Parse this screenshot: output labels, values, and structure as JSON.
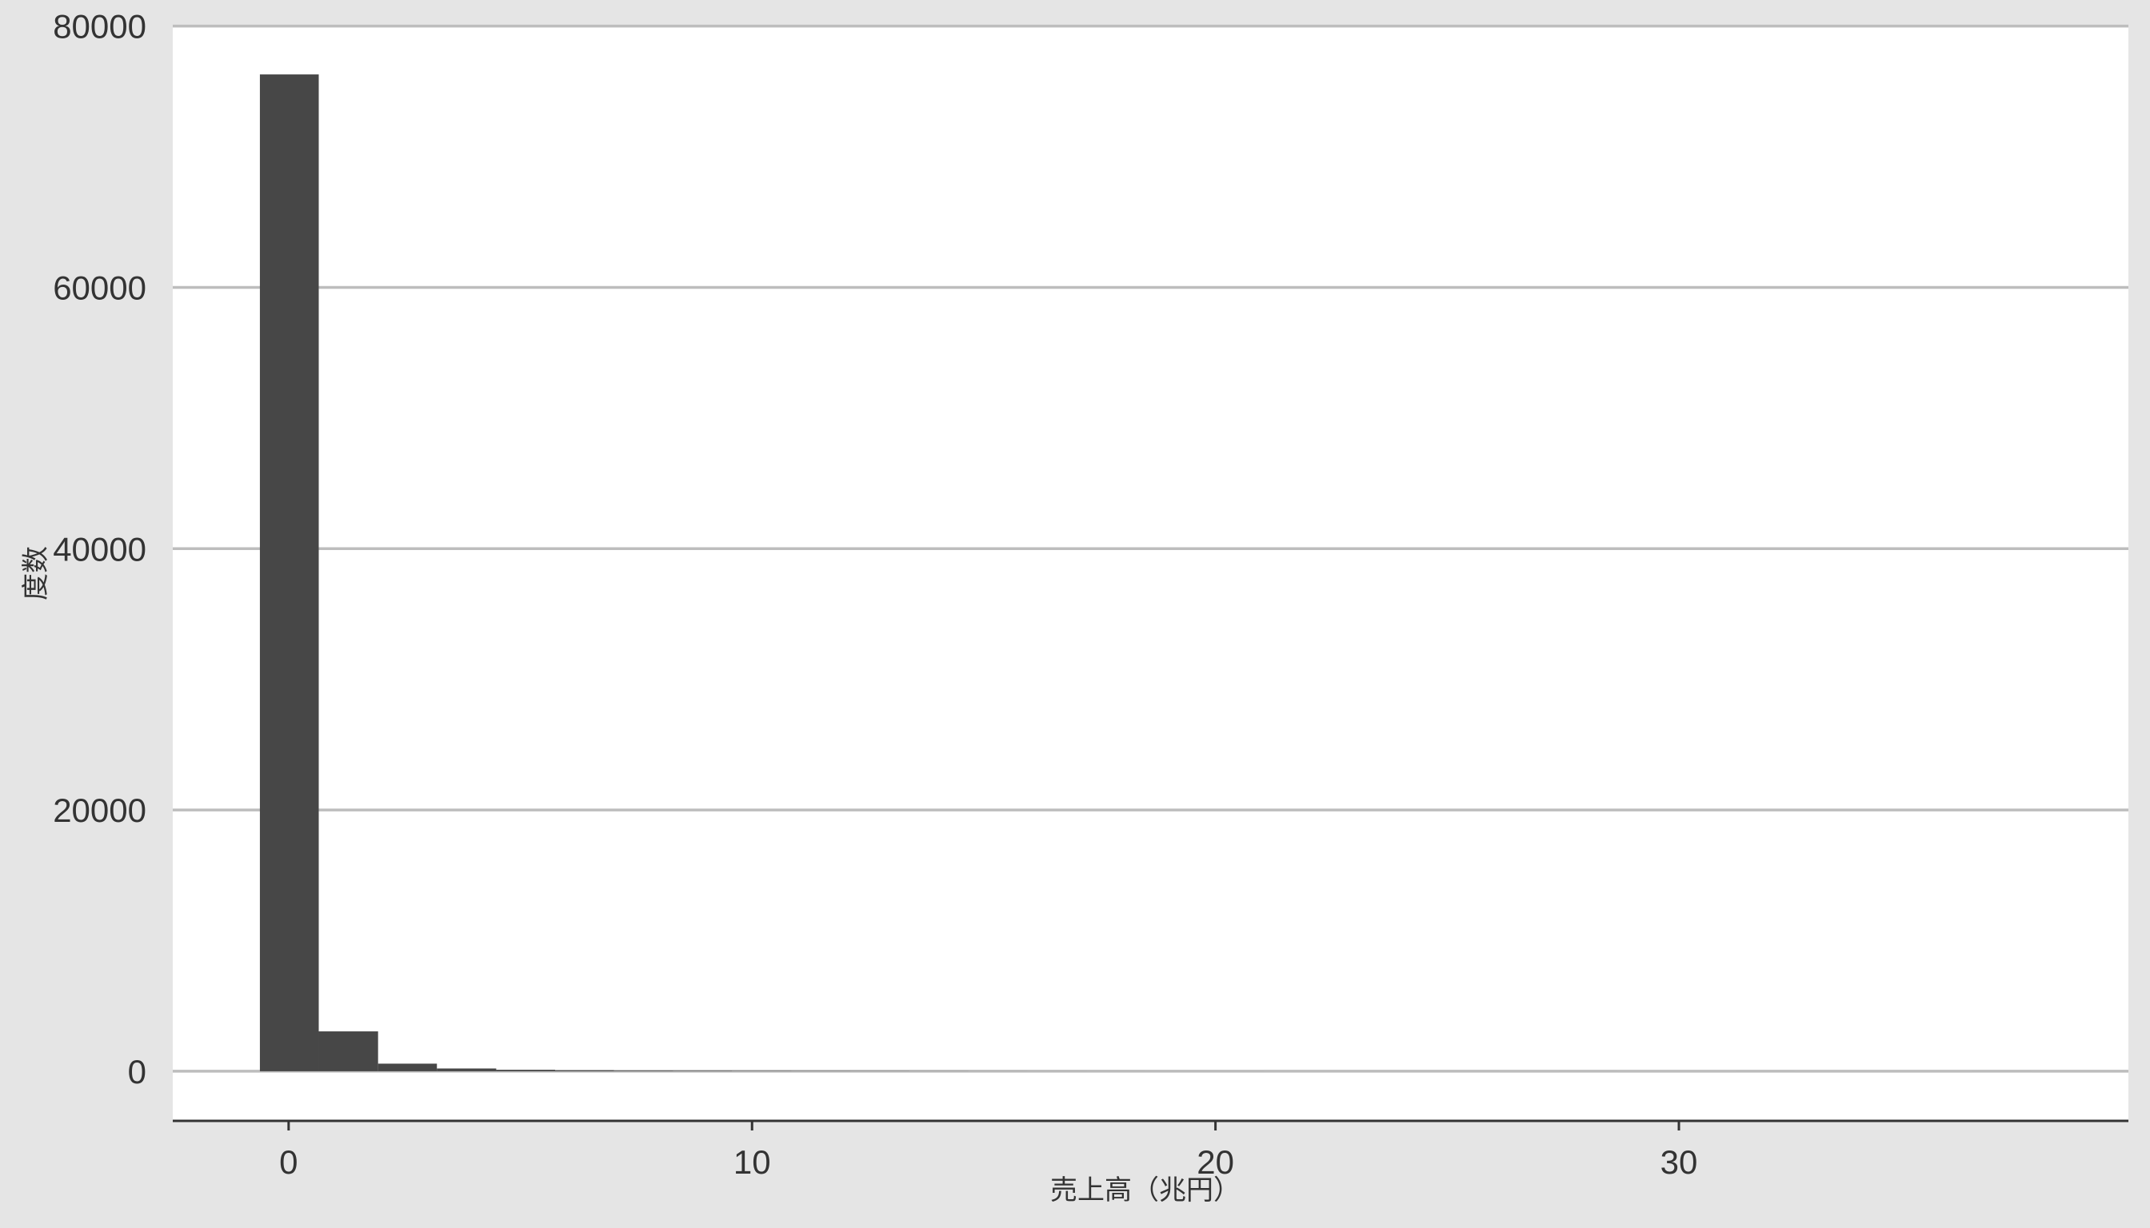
{
  "chart_data": {
    "type": "bar",
    "histogram": true,
    "xlabel": "売上高（兆円）",
    "ylabel": "度数",
    "bin_edges": [
      -0.62,
      0.65,
      1.93,
      3.2,
      4.48,
      5.75,
      7.02,
      8.3,
      9.57,
      10.85,
      12.12,
      13.39,
      14.67,
      15.94,
      17.22,
      18.49,
      19.76,
      21.04,
      22.31,
      23.59,
      24.86,
      26.13,
      27.41,
      28.68,
      29.96,
      31.23,
      32.5,
      33.78,
      35.05,
      36.33,
      37.6
    ],
    "values": [
      76300,
      3050,
      580,
      210,
      110,
      70,
      45,
      35,
      25,
      20,
      15,
      10,
      6,
      4,
      3,
      2,
      2,
      1,
      1,
      1,
      1,
      0,
      1,
      0,
      0,
      1,
      0,
      0,
      0,
      1
    ],
    "xlim": [
      -2.5,
      39.7
    ],
    "ylim": [
      -3800,
      80100
    ],
    "x_ticks": [
      0,
      10,
      20,
      30
    ],
    "y_ticks": [
      0,
      20000,
      40000,
      60000,
      80000
    ],
    "grid": {
      "horizontal": true,
      "vertical": false
    }
  },
  "colors": {
    "background": "#e5e5e5",
    "panel": "#ffffff",
    "bar": "#474747",
    "grid": "#bdbdbd",
    "axis": "#333333",
    "text": "#333333"
  }
}
